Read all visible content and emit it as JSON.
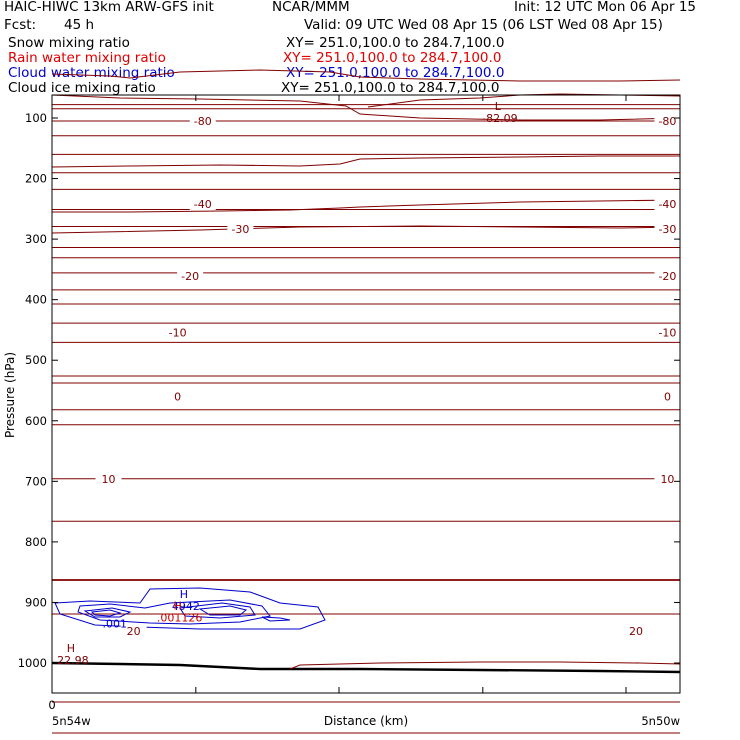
{
  "header": {
    "title_left": "HAIC-HIWC 13km ARW-GFS init",
    "org": "NCAR/MMM",
    "init": "Init: 12 UTC Mon 06 Apr 15",
    "fcst_label": "Fcst:",
    "fcst_value": "45 h",
    "valid": "Valid: 09 UTC Wed 08 Apr 15 (06 LST Wed 08 Apr 15)",
    "fields": [
      {
        "name": "Snow mixing ratio",
        "xy": "XY= 251.0,100.0 to 284.7,100.0",
        "color": "#000000"
      },
      {
        "name": "Rain water mixing ratio",
        "xy": "XY= 251.0,100.0 to 284.7,100.0",
        "color": "#e00000"
      },
      {
        "name": "Cloud water mixing ratio",
        "xy": "XY= 251.0,100.0 to 284.7,100.0",
        "color": "#0000cc"
      },
      {
        "name": "Cloud ice mixing ratio",
        "xy": "XY= 251.0,100.0 to 284.7,100.0",
        "color": "#000000"
      }
    ]
  },
  "chart_data": {
    "type": "line",
    "ylabel": "Pressure (hPa)",
    "xlabel": "Distance (km)",
    "y_ticks": [
      100,
      200,
      300,
      400,
      500,
      600,
      700,
      800,
      900,
      1000
    ],
    "ylim": [
      1050,
      80
    ],
    "x_labels": {
      "origin": "0",
      "left": "5n54w",
      "right": "5n50w"
    },
    "temperature_color": "#800000",
    "cloud_color": "#0000cc",
    "rain_color": "#cc0000",
    "isotherm_labels": [
      {
        "text": "-80",
        "p": 105,
        "x": [
          0.24,
          0.98
        ]
      },
      {
        "text": "-40",
        "p": 242,
        "x": [
          0.24,
          0.98
        ]
      },
      {
        "text": "-30",
        "p": 283,
        "x": [
          0.3,
          0.98
        ]
      },
      {
        "text": "-20",
        "p": 361,
        "x": [
          0.22,
          0.98
        ]
      },
      {
        "text": "-10",
        "p": 454,
        "x": [
          0.2,
          0.98
        ]
      },
      {
        "text": "0",
        "p": 560,
        "x": [
          0.2,
          0.98
        ]
      },
      {
        "text": "10",
        "p": 696,
        "x": [
          0.09,
          0.98
        ]
      },
      {
        "text": "20",
        "p": 947,
        "x": [
          0.13,
          0.93
        ]
      }
    ],
    "extrema": [
      {
        "label": "L",
        "value": "-82.09",
        "p": 87,
        "x": 0.71,
        "color": "#800000"
      },
      {
        "label": "H",
        "value": "22.98",
        "p": 982,
        "x": 0.03,
        "color": "#800000"
      },
      {
        "label": "H",
        "value": "4942",
        "p": 893,
        "x": 0.21,
        "color": "#0000cc"
      },
      {
        "label": "H",
        "value": ".001126",
        "p": 912,
        "x": 0.2,
        "color": "#cc0000"
      }
    ],
    "cloud_contour_label": {
      "text": ".001",
      "p": 935,
      "x": 0.1
    }
  }
}
